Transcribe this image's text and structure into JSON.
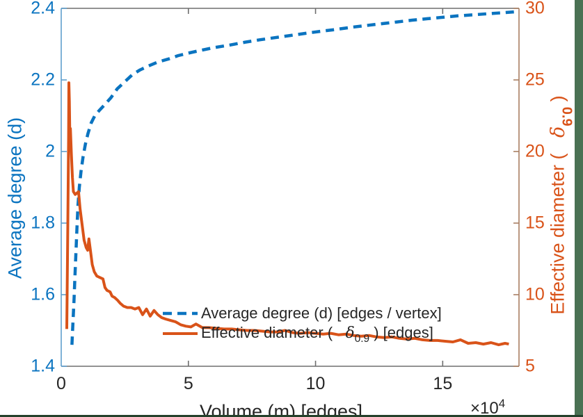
{
  "figure": {
    "background": "#ffffff",
    "right_strip_color": "#4a7153",
    "bottom_strip_color": "#24402a"
  },
  "axes_style": {
    "box_color": "#6e6e6e",
    "left_ruler_color": "#5f9ecd",
    "right_ruler_color": "#a97e62",
    "tick_length": 8
  },
  "chart_data": {
    "type": "line",
    "title": "",
    "xlabel": "Volume (m) [edges]",
    "x_exponent": {
      "base": "×10",
      "power": "4"
    },
    "x_unit_scale": "1e4",
    "xlim": [
      0,
      18
    ],
    "x_ticks": [
      "0",
      "5",
      "10",
      "15"
    ],
    "grid": false,
    "legend_position": "inside-bottom-center, no box",
    "left_axis": {
      "label": "Average degree (d)",
      "color": "#0B74C0",
      "ylim": [
        1.4,
        2.4
      ],
      "ticks": [
        "1.4",
        "1.6",
        "1.8",
        "2",
        "2.2",
        "2.4"
      ]
    },
    "right_axis": {
      "label_pre": "Effective diameter (   ",
      "label_delta": "δ",
      "label_sub": "0.9",
      "label_post": " )",
      "color": "#D95319",
      "ylim": [
        5,
        30
      ],
      "ticks": [
        "5",
        "10",
        "15",
        "20",
        "25",
        "30"
      ]
    },
    "series": [
      {
        "name_parts": {
          "full": "Average degree (d) [edges / vertex]"
        },
        "axis": "left",
        "line": "dashed",
        "color": "#0B74C0",
        "points": [
          [
            0.42,
            1.46
          ],
          [
            0.46,
            1.52
          ],
          [
            0.5,
            1.58
          ],
          [
            0.54,
            1.65
          ],
          [
            0.58,
            1.72
          ],
          [
            0.62,
            1.79
          ],
          [
            0.66,
            1.85
          ],
          [
            0.71,
            1.9
          ],
          [
            0.78,
            1.945
          ],
          [
            0.86,
            1.985
          ],
          [
            0.95,
            2.02
          ],
          [
            1.05,
            2.05
          ],
          [
            1.18,
            2.08
          ],
          [
            1.32,
            2.1
          ],
          [
            1.5,
            2.115
          ],
          [
            1.7,
            2.13
          ],
          [
            1.95,
            2.15
          ],
          [
            2.2,
            2.175
          ],
          [
            2.5,
            2.195
          ],
          [
            2.8,
            2.215
          ],
          [
            3.1,
            2.228
          ],
          [
            3.4,
            2.238
          ],
          [
            3.8,
            2.25
          ],
          [
            4.2,
            2.258
          ],
          [
            4.6,
            2.268
          ],
          [
            5.0,
            2.275
          ],
          [
            5.5,
            2.283
          ],
          [
            6.0,
            2.29
          ],
          [
            6.6,
            2.297
          ],
          [
            7.2,
            2.305
          ],
          [
            7.8,
            2.312
          ],
          [
            8.4,
            2.318
          ],
          [
            9.0,
            2.324
          ],
          [
            9.6,
            2.33
          ],
          [
            10.2,
            2.336
          ],
          [
            10.8,
            2.341
          ],
          [
            11.4,
            2.347
          ],
          [
            12.0,
            2.352
          ],
          [
            12.6,
            2.357
          ],
          [
            13.2,
            2.362
          ],
          [
            13.8,
            2.367
          ],
          [
            14.4,
            2.371
          ],
          [
            15.0,
            2.375
          ],
          [
            15.6,
            2.379
          ],
          [
            16.2,
            2.382
          ],
          [
            16.8,
            2.385
          ],
          [
            17.4,
            2.388
          ],
          [
            17.8,
            2.39
          ]
        ]
      },
      {
        "name_parts": {
          "pre": "Effective diameter (   ",
          "delta": "δ",
          "sub": "0.9",
          "post": " ) [edges]"
        },
        "axis": "right",
        "line": "solid",
        "color": "#D95319",
        "points": [
          [
            0.22,
            7.6
          ],
          [
            0.23,
            9.5
          ],
          [
            0.26,
            15.0
          ],
          [
            0.29,
            21.0
          ],
          [
            0.3,
            24.8
          ],
          [
            0.32,
            23.5
          ],
          [
            0.34,
            21.0
          ],
          [
            0.36,
            21.6
          ],
          [
            0.4,
            19.8
          ],
          [
            0.44,
            18.2
          ],
          [
            0.48,
            17.2
          ],
          [
            0.55,
            17.0
          ],
          [
            0.62,
            17.1
          ],
          [
            0.68,
            17.2
          ],
          [
            0.74,
            16.0
          ],
          [
            0.82,
            14.9
          ],
          [
            0.9,
            13.8
          ],
          [
            0.98,
            13.3
          ],
          [
            1.04,
            13.1
          ],
          [
            1.09,
            13.9
          ],
          [
            1.14,
            13.2
          ],
          [
            1.22,
            12.1
          ],
          [
            1.3,
            11.6
          ],
          [
            1.4,
            11.3
          ],
          [
            1.52,
            11.2
          ],
          [
            1.64,
            11.1
          ],
          [
            1.72,
            10.5
          ],
          [
            1.8,
            10.3
          ],
          [
            1.92,
            10.2
          ],
          [
            2.0,
            9.9
          ],
          [
            2.1,
            9.8
          ],
          [
            2.22,
            9.6
          ],
          [
            2.32,
            9.4
          ],
          [
            2.45,
            9.2
          ],
          [
            2.6,
            9.1
          ],
          [
            2.75,
            9.1
          ],
          [
            2.9,
            9.0
          ],
          [
            3.05,
            9.1
          ],
          [
            3.2,
            8.6
          ],
          [
            3.35,
            9.0
          ],
          [
            3.5,
            8.5
          ],
          [
            3.65,
            8.9
          ],
          [
            3.8,
            8.6
          ],
          [
            3.95,
            8.4
          ],
          [
            4.1,
            8.3
          ],
          [
            4.3,
            8.2
          ],
          [
            4.5,
            8.1
          ],
          [
            4.7,
            7.9
          ],
          [
            4.9,
            7.8
          ],
          [
            5.1,
            7.75
          ],
          [
            5.3,
            7.95
          ],
          [
            5.55,
            7.7
          ],
          [
            5.8,
            7.7
          ],
          [
            6.1,
            7.65
          ],
          [
            6.4,
            7.6
          ],
          [
            6.7,
            7.6
          ],
          [
            7.0,
            7.55
          ],
          [
            7.3,
            7.5
          ],
          [
            7.6,
            7.5
          ],
          [
            7.9,
            7.45
          ],
          [
            8.2,
            7.4
          ],
          [
            8.5,
            7.4
          ],
          [
            8.8,
            7.5
          ],
          [
            9.1,
            7.35
          ],
          [
            9.4,
            7.3
          ],
          [
            9.7,
            7.35
          ],
          [
            10.0,
            7.3
          ],
          [
            10.3,
            7.25
          ],
          [
            10.6,
            7.3
          ],
          [
            10.9,
            7.2
          ],
          [
            11.2,
            7.25
          ],
          [
            11.5,
            7.15
          ],
          [
            11.8,
            7.1
          ],
          [
            12.1,
            7.15
          ],
          [
            12.4,
            7.05
          ],
          [
            12.7,
            7.0
          ],
          [
            13.0,
            7.05
          ],
          [
            13.3,
            6.95
          ],
          [
            13.6,
            6.9
          ],
          [
            13.9,
            6.95
          ],
          [
            14.2,
            6.85
          ],
          [
            14.5,
            6.8
          ],
          [
            14.8,
            6.8
          ],
          [
            15.1,
            6.75
          ],
          [
            15.4,
            6.7
          ],
          [
            15.7,
            6.85
          ],
          [
            16.0,
            6.6
          ],
          [
            16.3,
            6.65
          ],
          [
            16.6,
            6.55
          ],
          [
            16.9,
            6.65
          ],
          [
            17.2,
            6.5
          ],
          [
            17.45,
            6.6
          ],
          [
            17.6,
            6.55
          ]
        ]
      }
    ]
  }
}
